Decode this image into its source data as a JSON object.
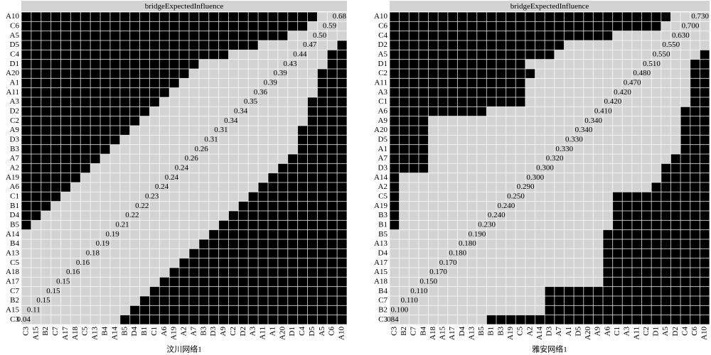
{
  "panels": [
    {
      "header": "bridgeExpectedInfluence",
      "caption": "汶川网络1",
      "rows": [
        "A10",
        "C6",
        "A5",
        "D5",
        "C4",
        "D1",
        "A20",
        "A1",
        "A11",
        "A3",
        "D2",
        "C2",
        "A9",
        "D3",
        "B3",
        "A7",
        "A2",
        "A19",
        "A6",
        "C1",
        "B1",
        "D4",
        "B5",
        "A14",
        "B4",
        "A13",
        "C5",
        "A18",
        "A17",
        "C7",
        "B2",
        "A15",
        "C3"
      ],
      "columns": [
        "C3",
        "A15",
        "B2",
        "C7",
        "A17",
        "A18",
        "C5",
        "A13",
        "B4",
        "A14",
        "B5",
        "D4",
        "B1",
        "C1",
        "A6",
        "A19",
        "A2",
        "A7",
        "B3",
        "D3",
        "A9",
        "C2",
        "D2",
        "A3",
        "A11",
        "A1",
        "A20",
        "D1",
        "C4",
        "D5",
        "A5",
        "C6",
        "A10"
      ],
      "diagonal": [
        "0.68",
        "0.59",
        "0.50",
        "0.47",
        "0.44",
        "0.43",
        "0.39",
        "0.39",
        "0.36",
        "0.35",
        "0.34",
        "0.34",
        "0.31",
        "0.31",
        "0.26",
        "0.26",
        "0.24",
        "0.24",
        "0.24",
        "0.23",
        "0.22",
        "0.22",
        "0.21",
        "0.19",
        "0.19",
        "0.18",
        "0.16",
        "0.16",
        "0.15",
        "0.15",
        "0.15",
        "0.11",
        "0.04"
      ],
      "cells": [
        [
          30,
          3,
          0
        ],
        [
          29,
          4,
          0
        ],
        [
          27,
          6,
          0
        ],
        [
          24,
          8,
          1
        ],
        [
          21,
          10,
          2
        ],
        [
          18,
          13,
          2
        ],
        [
          17,
          13,
          3
        ],
        [
          16,
          14,
          3
        ],
        [
          15,
          15,
          3
        ],
        [
          14,
          15,
          4
        ],
        [
          13,
          16,
          4
        ],
        [
          12,
          17,
          4
        ],
        [
          11,
          17,
          5
        ],
        [
          10,
          18,
          5
        ],
        [
          9,
          19,
          5
        ],
        [
          8,
          19,
          6
        ],
        [
          7,
          19,
          7
        ],
        [
          6,
          19,
          8
        ],
        [
          5,
          19,
          9
        ],
        [
          4,
          19,
          10
        ],
        [
          3,
          19,
          11
        ],
        [
          2,
          19,
          12
        ],
        [
          1,
          19,
          13
        ],
        [
          0,
          19,
          14
        ],
        [
          0,
          18,
          15
        ],
        [
          0,
          17,
          16
        ],
        [
          0,
          16,
          17
        ],
        [
          0,
          15,
          18
        ],
        [
          0,
          14,
          19
        ],
        [
          0,
          13,
          20
        ],
        [
          0,
          12,
          21
        ],
        [
          0,
          11,
          22
        ],
        [
          0,
          10,
          23
        ]
      ]
    },
    {
      "header": "bridgeExpectedInfluence",
      "caption": "雅安网络1",
      "rows": [
        "A10",
        "C6",
        "C4",
        "D2",
        "A5",
        "D1",
        "C2",
        "A11",
        "A3",
        "C1",
        "A6",
        "A9",
        "A20",
        "D5",
        "A1",
        "A7",
        "D3",
        "A14",
        "A2",
        "C5",
        "A19",
        "B3",
        "B1",
        "B5",
        "A13",
        "D4",
        "A17",
        "A15",
        "A18",
        "B4",
        "C7",
        "B2",
        "C3"
      ],
      "columns": [
        "C3",
        "B2",
        "C7",
        "B4",
        "A18",
        "A15",
        "A17",
        "D4",
        "A13",
        "B5",
        "B1",
        "B3",
        "A19",
        "C5",
        "A2",
        "A14",
        "D3",
        "A7",
        "A1",
        "D5",
        "A20",
        "A9",
        "A6",
        "C1",
        "A3",
        "A11",
        "C2",
        "D1",
        "A5",
        "D2",
        "C4",
        "C6",
        "A10"
      ],
      "diagonal": [
        "0.730",
        "0.700",
        "0.630",
        "0.550",
        "0.550",
        "0.510",
        "0.480",
        "0.470",
        "0.420",
        "0.420",
        "0.410",
        "0.340",
        "0.340",
        "0.330",
        "0.330",
        "0.320",
        "0.300",
        "0.300",
        "0.290",
        "0.250",
        "0.240",
        "0.240",
        "0.230",
        "0.190",
        "0.180",
        "0.180",
        "0.170",
        "0.170",
        "0.150",
        "0.110",
        "0.110",
        "0.100",
        ".084"
      ],
      "cells": [
        [
          29,
          4,
          0
        ],
        [
          28,
          5,
          0
        ],
        [
          23,
          10,
          0
        ],
        [
          18,
          15,
          0
        ],
        [
          17,
          15,
          1
        ],
        [
          14,
          17,
          2
        ],
        [
          15,
          16,
          2
        ],
        [
          14,
          17,
          2
        ],
        [
          14,
          17,
          2
        ],
        [
          14,
          17,
          2
        ],
        [
          10,
          20,
          3
        ],
        [
          4,
          26,
          3
        ],
        [
          4,
          26,
          3
        ],
        [
          4,
          26,
          3
        ],
        [
          4,
          26,
          3
        ],
        [
          4,
          25,
          4
        ],
        [
          4,
          24,
          5
        ],
        [
          1,
          27,
          5
        ],
        [
          1,
          26,
          6
        ],
        [
          1,
          22,
          10
        ],
        [
          1,
          22,
          10
        ],
        [
          1,
          22,
          10
        ],
        [
          1,
          22,
          10
        ],
        [
          0,
          22,
          11
        ],
        [
          0,
          22,
          11
        ],
        [
          0,
          22,
          11
        ],
        [
          0,
          22,
          11
        ],
        [
          0,
          22,
          11
        ],
        [
          0,
          22,
          11
        ],
        [
          0,
          16,
          17
        ],
        [
          0,
          16,
          17
        ],
        [
          0,
          16,
          17
        ],
        [
          0,
          10,
          23
        ]
      ]
    }
  ]
}
